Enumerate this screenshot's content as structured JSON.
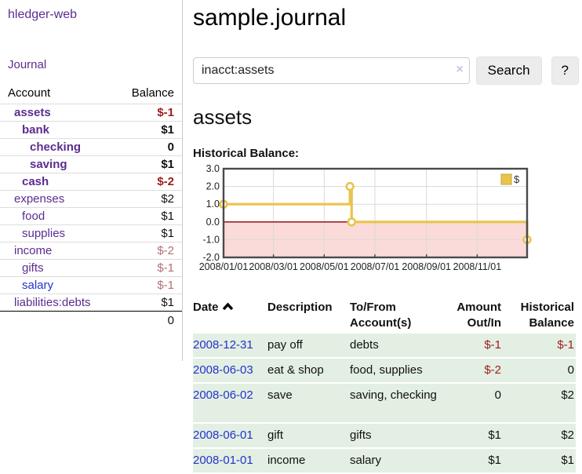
{
  "colors": {
    "link_purple": "#5b2d90",
    "link_blue": "#2233cc",
    "negative_strong": "#9e1b1b",
    "negative_muted": "#b57070",
    "row_green": "#e3efe3",
    "chart_gold": "#e9c44c",
    "chart_gold_dark": "#c9a132",
    "chart_negative_fill": "#fbdada",
    "chart_zero_line": "#8b0000",
    "chart_border": "#4a4a4d",
    "chart_grid": "#d9d9d9"
  },
  "sidebar": {
    "brand": "hledger-web",
    "nav_journal": "Journal",
    "accounts_table": {
      "account_header": "Account",
      "balance_header": "Balance",
      "rows": [
        {
          "label": "assets",
          "depth": 1,
          "balance": "$-1",
          "bold": true,
          "balance_style": "negative_strong",
          "link_color": "purple"
        },
        {
          "label": "bank",
          "depth": 2,
          "balance": "$1",
          "bold": true,
          "balance_style": "normal",
          "link_color": "purple"
        },
        {
          "label": "checking",
          "depth": 3,
          "balance": "0",
          "bold": true,
          "balance_style": "normal",
          "link_color": "purple"
        },
        {
          "label": "saving",
          "depth": 3,
          "balance": "$1",
          "bold": true,
          "balance_style": "normal",
          "link_color": "purple"
        },
        {
          "label": "cash",
          "depth": 2,
          "balance": "$-2",
          "bold": true,
          "balance_style": "negative_strong",
          "link_color": "purple"
        },
        {
          "label": "expenses",
          "depth": 1,
          "balance": "$2",
          "bold": false,
          "balance_style": "normal",
          "link_color": "purple"
        },
        {
          "label": "food",
          "depth": 2,
          "balance": "$1",
          "bold": false,
          "balance_style": "normal",
          "link_color": "purple"
        },
        {
          "label": "supplies",
          "depth": 2,
          "balance": "$1",
          "bold": false,
          "balance_style": "normal",
          "link_color": "purple"
        },
        {
          "label": "income",
          "depth": 1,
          "balance": "$-2",
          "bold": false,
          "balance_style": "negative_muted",
          "link_color": "purple"
        },
        {
          "label": "gifts",
          "depth": 2,
          "balance": "$-1",
          "bold": false,
          "balance_style": "negative_muted",
          "link_color": "purple"
        },
        {
          "label": "salary",
          "depth": 2,
          "balance": "$-1",
          "bold": false,
          "balance_style": "negative_muted",
          "link_color": "blue"
        },
        {
          "label": "liabilities:debts",
          "depth": 1,
          "balance": "$1",
          "bold": false,
          "balance_style": "normal",
          "link_color": "purple"
        }
      ],
      "total": "0"
    }
  },
  "header": {
    "title": "sample.journal"
  },
  "search": {
    "value": "inacct:assets",
    "clear_icon": "×",
    "search_button": "Search",
    "help_button": "?"
  },
  "account_page": {
    "title": "assets",
    "chart_heading": "Historical Balance:"
  },
  "chart_data": {
    "type": "line",
    "step": true,
    "title": "Historical Balance",
    "series": [
      {
        "name": "$",
        "points": [
          [
            "2008-01-01",
            1
          ],
          [
            "2008-06-01",
            2
          ],
          [
            "2008-06-03",
            0
          ],
          [
            "2008-12-31",
            -1
          ]
        ]
      }
    ],
    "x_range": [
      "2008-01-01",
      "2008-12-31"
    ],
    "ylim": [
      -2,
      3
    ],
    "y_tick_labels": [
      "3.0",
      "2.0",
      "1.0",
      "0.0",
      "-1.0",
      "-2.0"
    ],
    "y_tick_values": [
      3,
      2,
      1,
      0,
      -1,
      -2
    ],
    "x_tick_labels": [
      "2008/01/01",
      "2008/03/01",
      "2008/05/01",
      "2008/07/01",
      "2008/09/01",
      "2008/11/01"
    ],
    "x_tick_dates": [
      "2008-01-01",
      "2008-03-01",
      "2008-05-01",
      "2008-07-01",
      "2008-09-01",
      "2008-11-01"
    ],
    "legend": {
      "label": "$",
      "position": "top-right"
    },
    "grid": true,
    "negative_region_shaded": true,
    "zero_line": true
  },
  "register": {
    "columns": {
      "date": "Date",
      "description": "Description",
      "accounts_line1": "To/From",
      "accounts_line2": "Account(s)",
      "amount_line1": "Amount",
      "amount_line2": "Out/In",
      "balance_line1": "Historical",
      "balance_line2": "Balance"
    },
    "sort": {
      "column": "date",
      "direction": "ascending"
    },
    "rows": [
      {
        "date": "2008-12-31",
        "description": "pay off",
        "accounts": "debts",
        "amount": "$-1",
        "amount_negative": true,
        "balance": "$-1",
        "balance_negative": true,
        "tall": false
      },
      {
        "date": "2008-06-03",
        "description": "eat & shop",
        "accounts": "food, supplies",
        "amount": "$-2",
        "amount_negative": true,
        "balance": "0",
        "balance_negative": false,
        "tall": false
      },
      {
        "date": "2008-06-02",
        "description": "save",
        "accounts": "saving, checking",
        "amount": "0",
        "amount_negative": false,
        "balance": "$2",
        "balance_negative": false,
        "tall": true
      },
      {
        "date": "2008-06-01",
        "description": "gift",
        "accounts": "gifts",
        "amount": "$1",
        "amount_negative": false,
        "balance": "$2",
        "balance_negative": false,
        "tall": false
      },
      {
        "date": "2008-01-01",
        "description": "income",
        "accounts": "salary",
        "amount": "$1",
        "amount_negative": false,
        "balance": "$1",
        "balance_negative": false,
        "tall": false
      }
    ]
  }
}
